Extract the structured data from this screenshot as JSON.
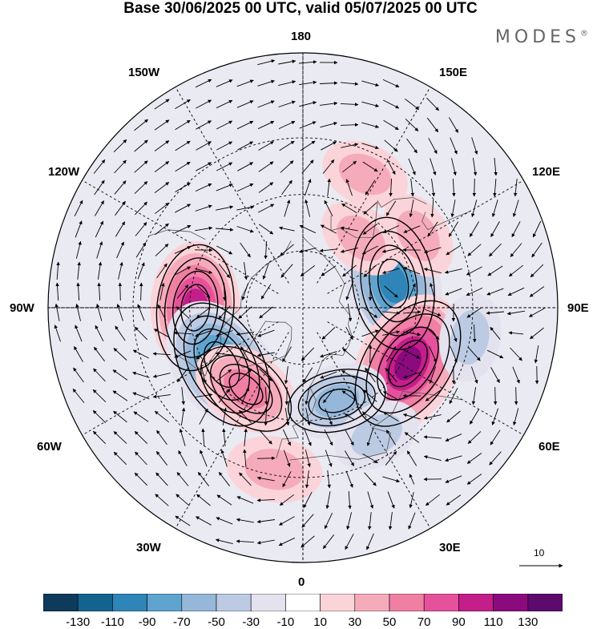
{
  "header": {
    "title": "Base 30/06/2025 00 UTC, valid 05/07/2025 00 UTC",
    "brand": "MODES",
    "brand_mark": "®"
  },
  "map": {
    "longitude_labels": {
      "top": "180",
      "bottom": "0",
      "left": "90W",
      "right": "90E",
      "upper_left_1": "150W",
      "upper_left_2": "120W",
      "upper_right_1": "150E",
      "upper_right_2": "120E",
      "lower_left_1": "60W",
      "lower_left_2": "30W",
      "lower_right_1": "60E",
      "lower_right_2": "30E"
    },
    "reference_vector": "10",
    "anomaly_centers": [
      {
        "sign": "positive",
        "lon": -90,
        "lat": 52,
        "peak": 100
      },
      {
        "sign": "negative",
        "lon": -55,
        "lat": 55,
        "peak": -110
      },
      {
        "sign": "negative",
        "lon": 105,
        "lat": 57,
        "peak": -110
      },
      {
        "sign": "positive",
        "lon": 62,
        "lat": 48,
        "peak": 120
      },
      {
        "sign": "positive",
        "lon": -35,
        "lat": 55,
        "peak": 70
      },
      {
        "sign": "negative",
        "lon": 20,
        "lat": 55,
        "peak": -60
      },
      {
        "sign": "positive",
        "lon": 140,
        "lat": 58,
        "peak": 40
      },
      {
        "sign": "positive",
        "lon": 155,
        "lat": 38,
        "peak": 40
      },
      {
        "sign": "positive",
        "lon": 122,
        "lat": 42,
        "peak": 40
      },
      {
        "sign": "positive",
        "lon": -10,
        "lat": 32,
        "peak": 50
      },
      {
        "sign": "negative",
        "lon": 30,
        "lat": 38,
        "peak": -40
      },
      {
        "sign": "negative",
        "lon": 80,
        "lat": 30,
        "peak": -40
      }
    ]
  },
  "colorbar": {
    "colors": [
      "#0e3a5c",
      "#13638f",
      "#2f85b7",
      "#5ea4cf",
      "#95b7d9",
      "#bccbe3",
      "#e3e2ee",
      "#ffffff",
      "#fad4d9",
      "#f6abbb",
      "#f07fa4",
      "#e5529b",
      "#c41e8a",
      "#8b0a7d",
      "#5c0a6b"
    ],
    "tick_labels": [
      "-130",
      "-110",
      "-90",
      "-70",
      "-50",
      "-30",
      "-10",
      "10",
      "30",
      "50",
      "70",
      "90",
      "110",
      "130"
    ]
  }
}
